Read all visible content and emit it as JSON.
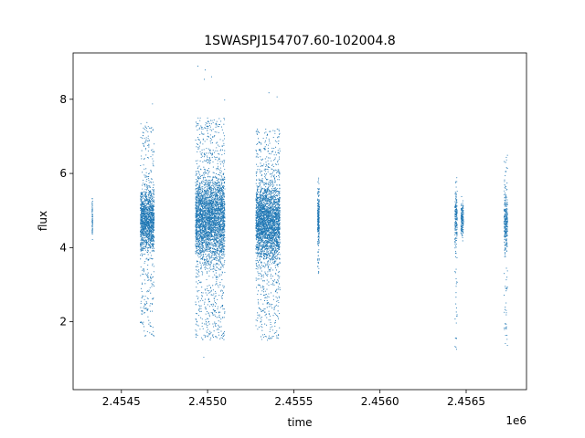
{
  "chart_data": {
    "type": "scatter",
    "title": "1SWASPJ154707.60-102004.8",
    "xlabel": "time",
    "ylabel": "flux",
    "x_offset_label": "1e6",
    "xlim": [
      2454220,
      2456850
    ],
    "ylim": [
      0.17,
      9.25
    ],
    "x_ticks": [
      2454500,
      2455000,
      2455500,
      2456000,
      2456500
    ],
    "x_tick_labels": [
      "2.4545",
      "2.4550",
      "2.4555",
      "2.4560",
      "2.4565"
    ],
    "y_ticks": [
      2,
      4,
      6,
      8
    ],
    "y_tick_labels": [
      "2",
      "4",
      "6",
      "8"
    ],
    "grid": false,
    "marker_color": "#1f77b4",
    "clusters": [
      {
        "x_range": [
          2454330,
          2454333
        ],
        "core_y": [
          4.3,
          5.2
        ],
        "n_points": 60
      },
      {
        "x_range": [
          2454610,
          2454690
        ],
        "core_y": [
          4.0,
          5.5
        ],
        "spread_y": [
          1.6,
          7.4
        ],
        "outliers_y": [
          0.6,
          8.7
        ],
        "n_points": 1500
      },
      {
        "x_range": [
          2454930,
          2455100
        ],
        "core_y": [
          3.8,
          5.8
        ],
        "spread_y": [
          1.5,
          7.5
        ],
        "outliers_y": [
          0.7,
          9.0
        ],
        "n_points": 3500
      },
      {
        "x_range": [
          2455280,
          2455420
        ],
        "core_y": [
          3.8,
          5.6
        ],
        "spread_y": [
          1.5,
          7.2
        ],
        "outliers_y": [
          0.7,
          8.9
        ],
        "n_points": 3000
      },
      {
        "x_range": [
          2455638,
          2455648
        ],
        "core_y": [
          4.2,
          5.4
        ],
        "spread_y": [
          3.3,
          5.9
        ],
        "n_points": 250
      },
      {
        "x_range": [
          2456435,
          2456448
        ],
        "core_y": [
          4.1,
          5.4
        ],
        "spread_y": [
          1.2,
          5.9
        ],
        "n_points": 200
      },
      {
        "x_range": [
          2456470,
          2456485
        ],
        "core_y": [
          4.3,
          5.2
        ],
        "n_points": 150
      },
      {
        "x_range": [
          2456720,
          2456740
        ],
        "core_y": [
          4.0,
          5.4
        ],
        "spread_y": [
          1.2,
          6.5
        ],
        "n_points": 300
      }
    ]
  }
}
